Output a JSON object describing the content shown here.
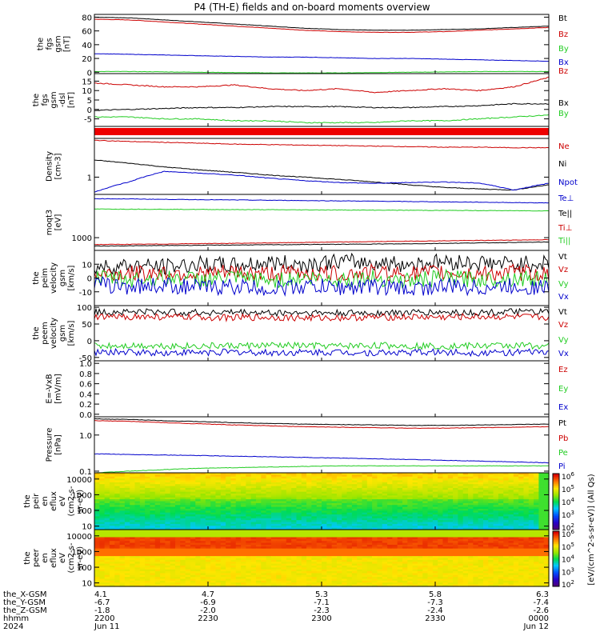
{
  "title": "P4 (TH-E) fields and on-board moments overview",
  "colors": {
    "black": "#000000",
    "red": "#cc0000",
    "green": "#22cc22",
    "blue": "#0000cc"
  },
  "chart_data": [
    {
      "id": "fgs_gsm",
      "type": "line",
      "ylabel": [
        "the",
        "fgs",
        "gsm",
        "[nT]"
      ],
      "ylim": [
        -2,
        84
      ],
      "yticks": [
        0,
        20,
        40,
        60,
        80
      ],
      "series": [
        {
          "name": "Bt",
          "color": "black",
          "values": [
            80,
            79,
            76,
            73,
            70,
            67,
            64,
            62,
            61,
            61,
            62,
            63,
            65,
            67
          ]
        },
        {
          "name": "Bz",
          "color": "red",
          "values": [
            77,
            76,
            73,
            70,
            67,
            64,
            61,
            59,
            58,
            58,
            59,
            61,
            63,
            65
          ]
        },
        {
          "name": "By",
          "color": "green",
          "values": [
            1,
            1,
            0.5,
            0,
            -0.5,
            -1,
            -1,
            -1,
            -0.5,
            0,
            0.5,
            1,
            1,
            1
          ]
        },
        {
          "name": "Bx",
          "color": "blue",
          "values": [
            27,
            26,
            25,
            24,
            23,
            22,
            22,
            21,
            20,
            20,
            19,
            18,
            17,
            16
          ]
        }
      ]
    },
    {
      "id": "fgs_gsm_dsl",
      "type": "line",
      "ylabel": [
        "the",
        "fgs",
        "gsm",
        "-dsl",
        "[nT]"
      ],
      "ylim": [
        -9,
        19
      ],
      "yticks": [
        -5,
        0,
        5,
        10,
        15
      ],
      "series": [
        {
          "name": "Bz",
          "color": "red",
          "values": [
            14,
            13,
            12,
            12,
            13,
            11,
            10,
            11,
            9,
            10,
            11,
            10,
            12,
            17
          ]
        },
        {
          "name": "Bx",
          "color": "black",
          "values": [
            -0.5,
            0,
            0.5,
            1,
            1,
            1.5,
            1.5,
            1.5,
            1,
            1,
            1.5,
            2,
            3,
            3
          ]
        },
        {
          "name": "By",
          "color": "green",
          "values": [
            -4,
            -4,
            -5,
            -5,
            -6,
            -6,
            -7,
            -7,
            -7,
            -6,
            -6,
            -5,
            -4,
            -3
          ]
        }
      ]
    },
    {
      "id": "density",
      "type": "line",
      "scale": "log",
      "ylabel": [
        "Density",
        "[cm-3]"
      ],
      "ylim": [
        0.45,
        6
      ],
      "yticks": [
        1
      ],
      "yticklabels": [
        "1"
      ],
      "series": [
        {
          "name": "Ne",
          "color": "red",
          "values": [
            5.5,
            5.2,
            5.0,
            4.8,
            4.6,
            4.5,
            4.4,
            4.3,
            4.2,
            4.1,
            4.0,
            4.0,
            3.9,
            3.9
          ]
        },
        {
          "name": "Ni",
          "color": "black",
          "values": [
            2.2,
            1.9,
            1.6,
            1.4,
            1.25,
            1.1,
            1.0,
            0.9,
            0.8,
            0.7,
            0.62,
            0.58,
            0.55,
            0.7
          ]
        },
        {
          "name": "Npot",
          "color": "blue",
          "values": [
            0.5,
            0.8,
            1.3,
            1.2,
            1.1,
            0.95,
            0.85,
            0.78,
            0.75,
            0.78,
            0.8,
            0.76,
            0.55,
            0.75
          ]
        }
      ]
    },
    {
      "id": "moqt3",
      "type": "line",
      "scale": "log",
      "ylabel": [
        "moqt3",
        "[eV]"
      ],
      "ylim": [
        450,
        15000
      ],
      "yticks": [
        1000
      ],
      "yticklabels": [
        "1000"
      ],
      "series": [
        {
          "name": "Te⊥",
          "color": "blue",
          "values": [
            11500,
            11300,
            11000,
            10800,
            10600,
            10400,
            10200,
            10000,
            9800,
            9600,
            9400,
            9200,
            9000,
            8800
          ]
        },
        {
          "name": "Te||",
          "color": "black",
          "values": [
            590,
            600,
            610,
            620,
            630,
            640,
            650,
            660,
            670,
            680,
            700,
            720,
            740,
            760
          ]
        },
        {
          "name": "Ti⊥",
          "color": "red",
          "values": [
            650,
            660,
            670,
            690,
            700,
            720,
            740,
            760,
            780,
            800,
            820,
            840,
            860,
            880
          ]
        },
        {
          "name": "Ti||",
          "color": "green",
          "values": [
            6000,
            5950,
            5900,
            5850,
            5800,
            5750,
            5700,
            5650,
            5600,
            5550,
            5500,
            5450,
            5400,
            5350
          ]
        }
      ]
    },
    {
      "id": "peim_velocity",
      "type": "line",
      "ylabel": [
        "the",
        "peim",
        "velocity",
        "gsm",
        "[km/s]"
      ],
      "ylim": [
        -20,
        20
      ],
      "yticks": [
        -10,
        0,
        10
      ],
      "series": [
        {
          "name": "Vt",
          "color": "black",
          "values": [
            8,
            9,
            8,
            10,
            9,
            11,
            10,
            12,
            11,
            10,
            12,
            11,
            10,
            11
          ]
        },
        {
          "name": "Vz",
          "color": "red",
          "values": [
            3,
            3,
            4,
            3,
            4,
            3,
            4,
            3,
            4,
            3,
            4,
            3,
            4,
            3
          ]
        },
        {
          "name": "Vy",
          "color": "green",
          "values": [
            0,
            -1,
            0,
            -1,
            0,
            -2,
            0,
            -1,
            0,
            -2,
            0,
            -1,
            0,
            -1
          ]
        },
        {
          "name": "Vx",
          "color": "blue",
          "values": [
            -5,
            -6,
            -5,
            -7,
            -6,
            -8,
            -6,
            -7,
            -6,
            -8,
            -6,
            -7,
            -6,
            -7
          ]
        }
      ]
    },
    {
      "id": "peem_velocity",
      "type": "line",
      "ylabel": [
        "the",
        "peem",
        "velocity",
        "gsm",
        "[km/s]"
      ],
      "ylim": [
        -60,
        105
      ],
      "yticks": [
        -50,
        0,
        50,
        100
      ],
      "series": [
        {
          "name": "Vt",
          "color": "black",
          "values": [
            85,
            87,
            86,
            84,
            85,
            83,
            84,
            82,
            83,
            84,
            85,
            84,
            86,
            85
          ]
        },
        {
          "name": "Vz",
          "color": "red",
          "values": [
            70,
            72,
            71,
            70,
            69,
            70,
            68,
            69,
            70,
            71,
            70,
            72,
            71,
            70
          ]
        },
        {
          "name": "Vy",
          "color": "green",
          "values": [
            -15,
            -14,
            -15,
            -16,
            -15,
            -14,
            -15,
            -16,
            -14,
            -15,
            -16,
            -15,
            -14,
            -15
          ]
        },
        {
          "name": "Vx",
          "color": "blue",
          "values": [
            -35,
            -34,
            -36,
            -35,
            -34,
            -36,
            -35,
            -34,
            -36,
            -35,
            -34,
            -36,
            -35,
            -34
          ]
        }
      ]
    },
    {
      "id": "efield",
      "type": "line",
      "ylabel": [
        "E=-VxB",
        "[mV/m]"
      ],
      "ylim": [
        -0.05,
        1.05
      ],
      "yticks": [
        0.0,
        0.2,
        0.4,
        0.6,
        0.8,
        1.0
      ],
      "yticklabels": [
        "0.0",
        "0.2",
        "0.4",
        "0.6",
        "0.8",
        "1.0"
      ],
      "series": [
        {
          "name": "Ez",
          "color": "red",
          "values": []
        },
        {
          "name": "Ey",
          "color": "green",
          "values": []
        },
        {
          "name": "Ex",
          "color": "blue",
          "values": []
        }
      ]
    },
    {
      "id": "pressure",
      "type": "line",
      "scale": "log",
      "ylabel": [
        "Pressure",
        "[nPa]"
      ],
      "ylim": [
        0.09,
        3.2
      ],
      "yticks": [
        0.1,
        1.0
      ],
      "yticklabels": [
        "0.1",
        "1.0"
      ],
      "series": [
        {
          "name": "Pt",
          "color": "black",
          "values": [
            2.8,
            2.7,
            2.5,
            2.35,
            2.2,
            2.1,
            2.0,
            1.95,
            1.9,
            1.85,
            1.85,
            1.9,
            1.95,
            2.0
          ]
        },
        {
          "name": "Pb",
          "color": "red",
          "values": [
            2.5,
            2.4,
            2.2,
            2.05,
            1.9,
            1.8,
            1.7,
            1.65,
            1.6,
            1.55,
            1.55,
            1.6,
            1.65,
            1.7
          ]
        },
        {
          "name": "Pe",
          "color": "green",
          "values": [
            0.09,
            0.1,
            0.11,
            0.12,
            0.125,
            0.13,
            0.135,
            0.14,
            0.14,
            0.14,
            0.14,
            0.14,
            0.14,
            0.14
          ]
        },
        {
          "name": "Pi",
          "color": "blue",
          "values": [
            0.3,
            0.29,
            0.28,
            0.27,
            0.26,
            0.25,
            0.24,
            0.23,
            0.22,
            0.21,
            0.2,
            0.19,
            0.18,
            0.17
          ]
        }
      ]
    },
    {
      "id": "peir_en_eflux",
      "type": "heatmap",
      "scale": "log",
      "ylabel": [
        "the",
        "peir",
        "en",
        "eflux",
        "eV",
        "(cm2-s-",
        "sr-eV)"
      ],
      "ylim": [
        6,
        25000
      ],
      "yticks": [
        10,
        100,
        1000,
        10000
      ],
      "yticklabels": [
        "10",
        "100",
        "1000",
        "10000"
      ],
      "zlim": [
        100,
        1000000
      ]
    },
    {
      "id": "peer_en_eflux",
      "type": "heatmap",
      "scale": "log",
      "ylabel": [
        "the",
        "peer",
        "en",
        "eflux",
        "eV",
        "(cm2-s-",
        "sr-eV)"
      ],
      "ylim": [
        6,
        25000
      ],
      "yticks": [
        10,
        100,
        1000,
        10000
      ],
      "yticklabels": [
        "10",
        "100",
        "1000",
        "10000"
      ],
      "zlim": [
        100,
        1000000
      ]
    }
  ],
  "colorbar": {
    "label": "[eV/(cm^2-s-sr-eV)] (All Qs)",
    "ticks": [
      "10^2",
      "10^3",
      "10^4",
      "10^5",
      "10^6"
    ]
  },
  "x_axis": {
    "rows": [
      {
        "label": "the_X-GSM",
        "values": [
          "4.1",
          "4.7",
          "5.3",
          "5.8",
          "6.3"
        ]
      },
      {
        "label": "the_Y-GSM",
        "values": [
          "-6.7",
          "-6.9",
          "-7.1",
          "-7.3",
          "-7.4"
        ]
      },
      {
        "label": "the_Z-GSM",
        "values": [
          "-1.8",
          "-2.0",
          "-2.3",
          "-2.4",
          "-2.6"
        ]
      },
      {
        "label": "hhmm",
        "values": [
          "2200",
          "2230",
          "2300",
          "2330",
          "0000"
        ]
      },
      {
        "label": "2024",
        "values": [
          "Jun 11",
          "",
          "",
          "",
          "Jun 12"
        ]
      }
    ]
  }
}
